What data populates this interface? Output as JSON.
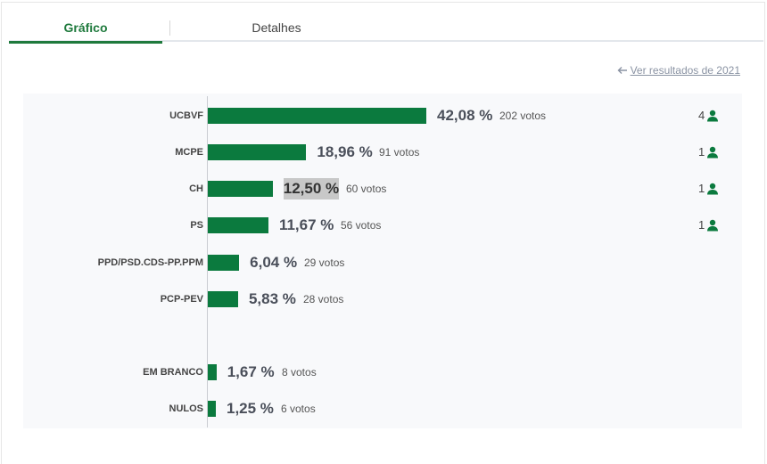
{
  "tabs": [
    {
      "label": "Gráfico",
      "active": true
    },
    {
      "label": "Detalhes",
      "active": false
    }
  ],
  "prev_results_link": "Ver resultados de 2021",
  "colors": {
    "bar": "#0b7a3e",
    "accent": "#1f7a3d",
    "highlight": "#c8c8c8"
  },
  "results": [
    {
      "party": "UCBVF",
      "pct_label": "42,08 %",
      "votes_label": "202 votos",
      "pct": 42.08,
      "seats": "4"
    },
    {
      "party": "MCPE",
      "pct_label": "18,96 %",
      "votes_label": "91 votos",
      "pct": 18.96,
      "seats": "1"
    },
    {
      "party": "CH",
      "pct_label": "12,50 %",
      "votes_label": "60 votos",
      "pct": 12.5,
      "seats": "1",
      "highlighted": true
    },
    {
      "party": "PS",
      "pct_label": "11,67 %",
      "votes_label": "56 votos",
      "pct": 11.67,
      "seats": "1"
    },
    {
      "party": "PPD/PSD.CDS-PP.PPM",
      "pct_label": "6,04 %",
      "votes_label": "29 votos",
      "pct": 6.04,
      "seats": ""
    },
    {
      "party": "PCP-PEV",
      "pct_label": "5,83 %",
      "votes_label": "28 votos",
      "pct": 5.83,
      "seats": ""
    },
    {
      "party": "EM BRANCO",
      "pct_label": "1,67 %",
      "votes_label": "8 votos",
      "pct": 1.67,
      "seats": ""
    },
    {
      "party": "NULOS",
      "pct_label": "1,25 %",
      "votes_label": "6 votos",
      "pct": 1.25,
      "seats": ""
    }
  ]
}
